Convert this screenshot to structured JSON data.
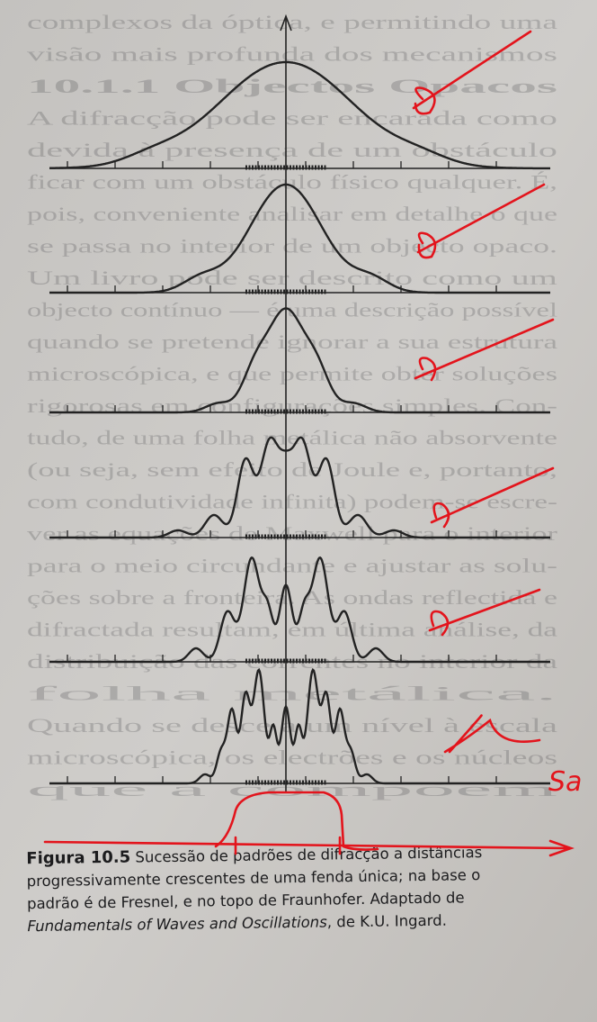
{
  "background_text": [
    "complexos da óptica, e permitindo uma",
    "visão mais profunda dos mecanismos",
    "10.1.1 Objectos Opacos",
    "A difracção pode ser encarada como",
    "devida à presença de um obstáculo",
    "ficar com um obstáculo físico qualquer. É,",
    "pois, conveniente analisar em detalhe o que",
    "se passa no interior de um objecto opaco.",
    "Um livro pode ser descrito como um",
    "objecto contínuo — é uma descrição possível",
    "quando se pretende ignorar a sua estrutura",
    "microscópica, e que permite obter soluções",
    "rigorosas em configurações simples. Con-",
    "tudo, de uma folha metálica não absorvente",
    "(ou seja, sem efeito de Joule e, portanto,",
    "com condutividade infinita) podem-se escre-",
    "ver as equações de Maxwell para o interior",
    "para o meio circundante e ajustar as solu-",
    "ções sobre a fronteira. As ondas reflectida e",
    "difractada resultam, em última análise, da",
    "distribuição das correntes no interior da",
    "folha metálica.",
    "Quando se desce a um nível à escala",
    "microscópica, os electrões e os núcleos",
    "que a compõem"
  ],
  "figure": {
    "label": "Figura 10.5",
    "caption_lines": [
      " Sucessão de padrões de difracção a distâncias",
      "progressivamente crescentes de uma fenda única; na base o",
      "padrão é de Fresnel, e no topo de Fraunhofer. Adaptado de"
    ],
    "source_title": "Fundamentals of Waves and Oscillations",
    "source_rest": ", de K.U. Ingard."
  },
  "handwriting": {
    "note": "Sa"
  }
}
